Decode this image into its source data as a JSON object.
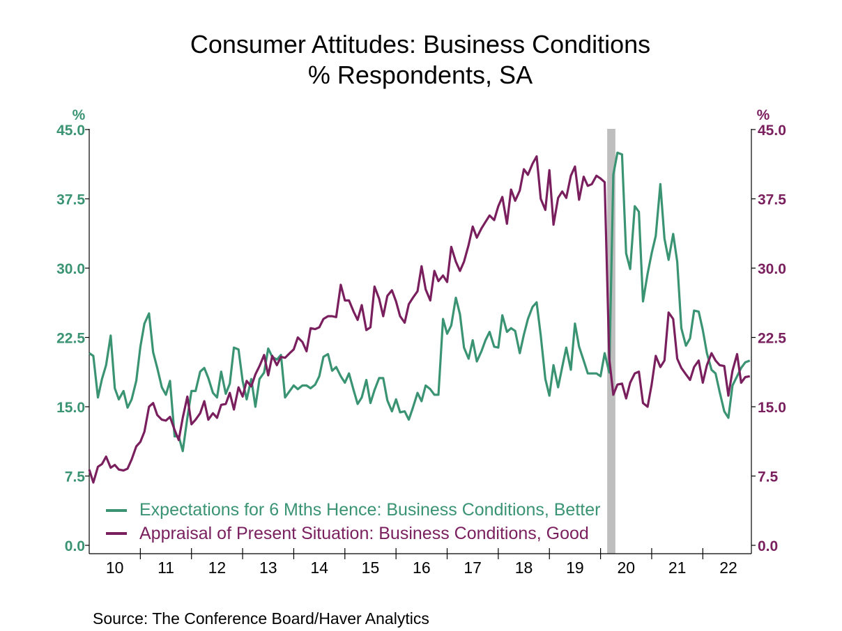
{
  "chart_data": {
    "type": "line",
    "title": "Consumer Attitudes: Business Conditions",
    "subtitle": "% Respondents, SA",
    "left_axis": {
      "unit": "%",
      "ylim": [
        0,
        45
      ],
      "ticks": [
        "45.0",
        "37.5",
        "30.0",
        "22.5",
        "15.0",
        "7.5",
        "0.0"
      ],
      "color": "#3a9473"
    },
    "right_axis": {
      "unit": "%",
      "ylim": [
        0,
        45
      ],
      "ticks": [
        "45.0",
        "37.5",
        "30.0",
        "22.5",
        "15.0",
        "7.5",
        "0.0"
      ],
      "color": "#7a1f5e"
    },
    "x_range": [
      2010.0,
      2022.95
    ],
    "x_tick_labels": [
      "10",
      "11",
      "12",
      "13",
      "14",
      "15",
      "16",
      "17",
      "18",
      "19",
      "20",
      "21",
      "22"
    ],
    "recession_band": {
      "start": 2020.13,
      "end": 2020.29,
      "color": "#bebebe"
    },
    "series": [
      {
        "name": "Expectations for 6 Mths Hence: Business Conditions, Better",
        "color": "#3a9473",
        "x": [
          2010.0,
          2010.08,
          2010.17,
          2010.25,
          2010.33,
          2010.42,
          2010.5,
          2010.58,
          2010.67,
          2010.75,
          2010.83,
          2010.92,
          2011.0,
          2011.08,
          2011.17,
          2011.25,
          2011.33,
          2011.42,
          2011.5,
          2011.58,
          2011.67,
          2011.75,
          2011.83,
          2011.92,
          2012.0,
          2012.08,
          2012.17,
          2012.25,
          2012.33,
          2012.42,
          2012.5,
          2012.58,
          2012.67,
          2012.75,
          2012.83,
          2012.92,
          2013.0,
          2013.08,
          2013.17,
          2013.25,
          2013.33,
          2013.42,
          2013.5,
          2013.58,
          2013.67,
          2013.75,
          2013.83,
          2013.92,
          2014.0,
          2014.08,
          2014.17,
          2014.25,
          2014.33,
          2014.42,
          2014.5,
          2014.58,
          2014.67,
          2014.75,
          2014.83,
          2014.92,
          2015.0,
          2015.08,
          2015.17,
          2015.25,
          2015.33,
          2015.42,
          2015.5,
          2015.58,
          2015.67,
          2015.75,
          2015.83,
          2015.92,
          2016.0,
          2016.08,
          2016.17,
          2016.25,
          2016.33,
          2016.42,
          2016.5,
          2016.58,
          2016.67,
          2016.75,
          2016.83,
          2016.92,
          2017.0,
          2017.08,
          2017.17,
          2017.25,
          2017.33,
          2017.42,
          2017.5,
          2017.58,
          2017.67,
          2017.75,
          2017.83,
          2017.92,
          2018.0,
          2018.08,
          2018.17,
          2018.25,
          2018.33,
          2018.42,
          2018.5,
          2018.58,
          2018.67,
          2018.75,
          2018.83,
          2018.92,
          2019.0,
          2019.08,
          2019.17,
          2019.25,
          2019.33,
          2019.42,
          2019.5,
          2019.58,
          2019.67,
          2019.75,
          2019.83,
          2019.92,
          2020.0,
          2020.08,
          2020.17,
          2020.25,
          2020.33,
          2020.42,
          2020.5,
          2020.58,
          2020.67,
          2020.75,
          2020.83,
          2020.92,
          2021.0,
          2021.08,
          2021.17,
          2021.25,
          2021.33,
          2021.42,
          2021.5,
          2021.58,
          2021.67,
          2021.75,
          2021.83,
          2021.92,
          2022.0,
          2022.08,
          2022.17,
          2022.25,
          2022.33,
          2022.42,
          2022.5,
          2022.58,
          2022.67,
          2022.75,
          2022.83,
          2022.92
        ],
        "values": [
          20.8,
          20.5,
          16.0,
          18.0,
          19.5,
          22.7,
          17.0,
          15.8,
          16.7,
          14.9,
          15.8,
          17.8,
          21.5,
          24.0,
          25.1,
          20.9,
          19.2,
          17.1,
          16.3,
          17.8,
          11.8,
          11.8,
          10.2,
          13.8,
          16.7,
          16.7,
          18.8,
          19.2,
          18.1,
          16.5,
          16.0,
          18.8,
          16.4,
          17.5,
          21.4,
          21.2,
          17.8,
          15.8,
          18.0,
          15.0,
          18.0,
          18.7,
          21.3,
          20.4,
          20.1,
          20.6,
          16.0,
          16.7,
          17.3,
          16.9,
          17.3,
          17.3,
          17.0,
          17.4,
          18.3,
          20.4,
          20.7,
          18.9,
          19.3,
          18.3,
          17.6,
          18.6,
          16.8,
          15.3,
          16.0,
          17.9,
          15.4,
          16.8,
          18.1,
          18.1,
          15.7,
          14.5,
          15.8,
          14.4,
          14.5,
          13.6,
          14.9,
          16.5,
          15.6,
          17.3,
          16.9,
          16.3,
          16.3,
          24.5,
          22.9,
          23.8,
          26.8,
          25.0,
          21.4,
          20.2,
          22.2,
          19.9,
          21.0,
          22.2,
          23.1,
          21.5,
          21.4,
          24.9,
          23.1,
          23.5,
          23.2,
          20.8,
          22.8,
          24.5,
          25.8,
          26.3,
          22.7,
          18.0,
          16.2,
          19.5,
          17.1,
          19.3,
          21.4,
          19.0,
          24.0,
          21.5,
          20.0,
          18.6,
          18.6,
          18.6,
          18.3,
          20.8,
          18.7,
          40.1,
          42.5,
          42.3,
          31.6,
          29.9,
          36.7,
          36.1,
          26.4,
          29.4,
          31.6,
          33.5,
          39.1,
          33.2,
          30.9,
          33.7,
          30.7,
          23.5,
          21.6,
          22.4,
          25.4,
          25.3,
          23.3,
          20.8,
          19.0,
          18.6,
          16.6,
          14.5,
          13.8,
          17.3,
          18.3,
          19.2,
          19.8,
          20.0
        ]
      },
      {
        "name": "Appraisal of Present Situation: Business Conditions, Good",
        "color": "#7a1f5e",
        "x": [
          2010.0,
          2010.08,
          2010.17,
          2010.25,
          2010.33,
          2010.42,
          2010.5,
          2010.58,
          2010.67,
          2010.75,
          2010.83,
          2010.92,
          2011.0,
          2011.08,
          2011.17,
          2011.25,
          2011.33,
          2011.42,
          2011.5,
          2011.58,
          2011.67,
          2011.75,
          2011.83,
          2011.92,
          2012.0,
          2012.08,
          2012.17,
          2012.25,
          2012.33,
          2012.42,
          2012.5,
          2012.58,
          2012.67,
          2012.75,
          2012.83,
          2012.92,
          2013.0,
          2013.08,
          2013.17,
          2013.25,
          2013.33,
          2013.42,
          2013.5,
          2013.58,
          2013.67,
          2013.75,
          2013.83,
          2013.92,
          2014.0,
          2014.08,
          2014.17,
          2014.25,
          2014.33,
          2014.42,
          2014.5,
          2014.58,
          2014.67,
          2014.75,
          2014.83,
          2014.92,
          2015.0,
          2015.08,
          2015.17,
          2015.25,
          2015.33,
          2015.42,
          2015.5,
          2015.58,
          2015.67,
          2015.75,
          2015.83,
          2015.92,
          2016.0,
          2016.08,
          2016.17,
          2016.25,
          2016.33,
          2016.42,
          2016.5,
          2016.58,
          2016.67,
          2016.75,
          2016.83,
          2016.92,
          2017.0,
          2017.08,
          2017.17,
          2017.25,
          2017.33,
          2017.42,
          2017.5,
          2017.58,
          2017.67,
          2017.75,
          2017.83,
          2017.92,
          2018.0,
          2018.08,
          2018.17,
          2018.25,
          2018.33,
          2018.42,
          2018.5,
          2018.58,
          2018.67,
          2018.75,
          2018.83,
          2018.92,
          2019.0,
          2019.08,
          2019.17,
          2019.25,
          2019.33,
          2019.42,
          2019.5,
          2019.58,
          2019.67,
          2019.75,
          2019.83,
          2019.92,
          2020.0,
          2020.08,
          2020.17,
          2020.25,
          2020.33,
          2020.42,
          2020.5,
          2020.58,
          2020.67,
          2020.75,
          2020.83,
          2020.92,
          2021.0,
          2021.08,
          2021.17,
          2021.25,
          2021.33,
          2021.42,
          2021.5,
          2021.58,
          2021.67,
          2021.75,
          2021.83,
          2021.92,
          2022.0,
          2022.08,
          2022.17,
          2022.25,
          2022.33,
          2022.42,
          2022.5,
          2022.58,
          2022.67,
          2022.75,
          2022.83,
          2022.92
        ],
        "values": [
          8.2,
          6.8,
          8.5,
          8.8,
          9.6,
          8.4,
          8.7,
          8.2,
          8.1,
          8.3,
          9.3,
          10.7,
          11.2,
          12.3,
          15.0,
          15.4,
          14.1,
          13.6,
          13.5,
          13.9,
          12.5,
          11.4,
          13.8,
          16.1,
          13.1,
          13.6,
          14.3,
          15.6,
          13.6,
          14.3,
          13.8,
          15.2,
          15.3,
          16.5,
          14.7,
          17.1,
          16.1,
          17.8,
          17.2,
          18.5,
          19.4,
          20.6,
          18.4,
          20.5,
          19.5,
          20.4,
          20.3,
          20.8,
          21.2,
          22.5,
          22.0,
          21.0,
          23.5,
          23.4,
          23.6,
          24.5,
          24.8,
          24.8,
          24.7,
          28.2,
          26.5,
          26.5,
          25.3,
          24.4,
          26.0,
          23.3,
          23.6,
          28.0,
          26.7,
          24.8,
          27.0,
          27.6,
          26.4,
          24.8,
          24.1,
          26.1,
          26.8,
          27.5,
          30.2,
          27.7,
          26.5,
          29.7,
          28.6,
          29.2,
          28.5,
          32.3,
          30.7,
          29.7,
          30.7,
          32.5,
          34.5,
          33.3,
          34.3,
          35.0,
          35.7,
          35.2,
          36.7,
          37.7,
          34.8,
          38.5,
          37.3,
          38.4,
          40.7,
          40.1,
          41.3,
          42.1,
          37.5,
          36.3,
          40.6,
          34.7,
          37.6,
          38.3,
          37.6,
          40.0,
          41.0,
          37.4,
          39.9,
          38.9,
          39.1,
          40.0,
          39.7,
          39.3,
          20.2,
          16.3,
          17.4,
          17.5,
          15.9,
          17.6,
          18.6,
          18.8,
          15.4,
          15.0,
          17.4,
          20.5,
          19.3,
          20.0,
          25.2,
          24.5,
          20.2,
          19.2,
          18.5,
          17.9,
          19.3,
          20.0,
          17.6,
          19.5,
          20.8,
          20.0,
          19.5,
          19.4,
          16.2,
          18.9,
          20.7,
          17.6,
          18.2,
          18.3
        ]
      }
    ],
    "legend": {
      "placement": "bottom-left",
      "items": [
        "Expectations for 6 Mths Hence: Business Conditions, Better",
        "Appraisal of Present Situation: Business Conditions, Good"
      ]
    },
    "source": "Source:  The Conference Board/Haver Analytics"
  }
}
